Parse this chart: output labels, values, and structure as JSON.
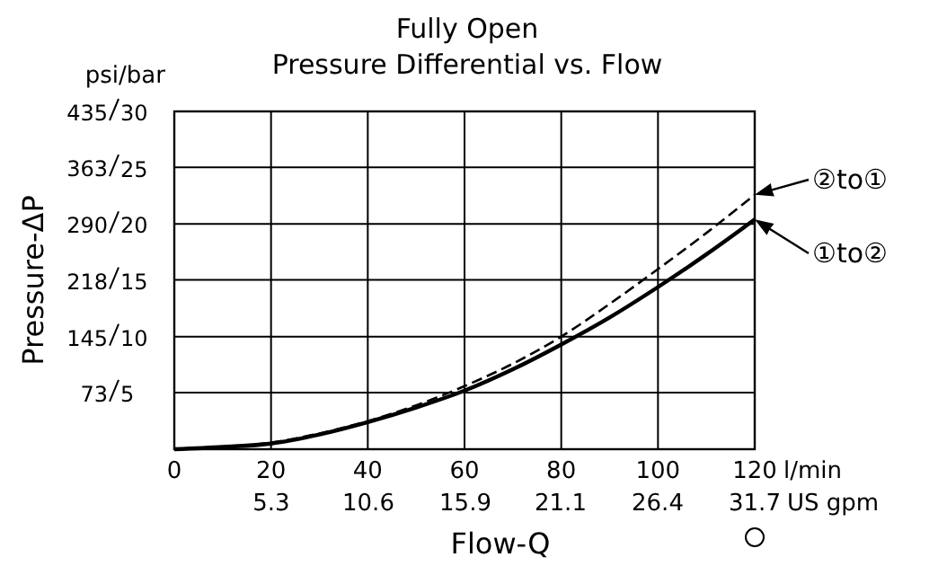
{
  "chart_data": {
    "type": "line",
    "title": "Fully Open",
    "subtitle": "Pressure Differential vs. Flow",
    "xlabel": "Flow-Q",
    "ylabel": "Pressure-ΔP",
    "x": [
      0,
      10,
      20,
      30,
      40,
      50,
      60,
      70,
      80,
      90,
      100,
      110,
      120
    ],
    "series": [
      {
        "name": "②to①",
        "color": "#000000",
        "line_style": "dashed",
        "axis": "y2",
        "values": [
          0,
          0.2,
          0.6,
          1.4,
          2.5,
          3.9,
          5.6,
          7.6,
          10.0,
          12.9,
          16.0,
          19.2,
          22.6
        ]
      },
      {
        "name": "①to②",
        "color": "#000000",
        "line_style": "solid",
        "axis": "y2",
        "values": [
          0,
          0.2,
          0.5,
          1.3,
          2.4,
          3.7,
          5.2,
          7.1,
          9.3,
          11.7,
          14.4,
          17.3,
          20.4
        ]
      }
    ],
    "xlim": [
      0,
      120
    ],
    "xticks": [
      0,
      20,
      40,
      60,
      80,
      100,
      120
    ],
    "x2lim": [
      0,
      31.7
    ],
    "x2ticks": [
      5.3,
      10.6,
      15.9,
      21.1,
      26.4,
      31.7
    ],
    "ylim": [
      0,
      435
    ],
    "yticks": [
      73,
      145,
      218,
      290,
      363,
      435
    ],
    "y2lim": [
      0,
      30
    ],
    "y2ticks": [
      5,
      10,
      15,
      20,
      25,
      30
    ],
    "grid": true,
    "marker": "none",
    "legend": "right",
    "annotations": [
      "psi/bar",
      "l/min",
      "US gpm"
    ]
  }
}
